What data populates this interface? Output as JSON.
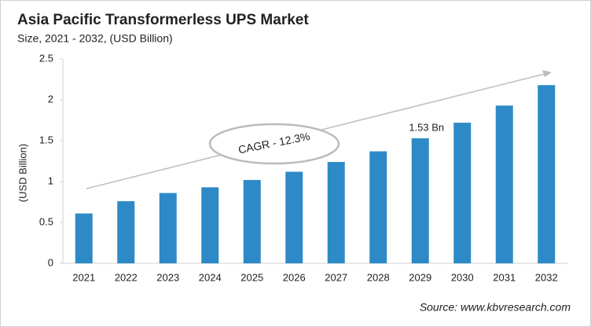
{
  "chart_data": {
    "type": "bar",
    "title": "Asia Pacific Transformerless  UPS Market",
    "subtitle": "Size, 2021 - 2032, (USD Billion)",
    "y_label": "(USD Billion)",
    "categories": [
      "2021",
      "2022",
      "2023",
      "2024",
      "2025",
      "2026",
      "2027",
      "2028",
      "2029",
      "2030",
      "2031",
      "2032"
    ],
    "values": [
      0.61,
      0.76,
      0.86,
      0.93,
      1.02,
      1.12,
      1.24,
      1.37,
      1.53,
      1.72,
      1.93,
      2.18
    ],
    "value_labels": [
      null,
      null,
      null,
      null,
      null,
      null,
      null,
      null,
      "1.53 Bn",
      null,
      null,
      null
    ],
    "color": "#2e8ac6",
    "ylim": [
      0,
      2.5
    ],
    "yticks": [
      0,
      0.5,
      1,
      1.5,
      2,
      2.5
    ],
    "grid": false,
    "annotation": "CAGR - 12.3%",
    "source": "Source: www.kbvresearch.com"
  }
}
